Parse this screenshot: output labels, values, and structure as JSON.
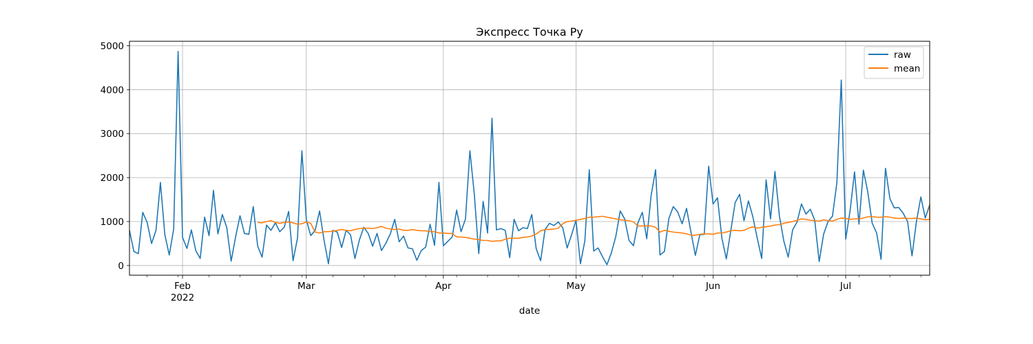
{
  "chart_data": {
    "type": "line",
    "title": "Экспресс Точка Ру",
    "xlabel": "date",
    "ylabel": "",
    "x_start": "2022-01-20",
    "x_end": "2022-07-20",
    "ylim": [
      -220,
      5100
    ],
    "yticks": [
      0,
      1000,
      2000,
      3000,
      4000,
      5000
    ],
    "xticks": [
      {
        "date": "2022-02-01",
        "label": "Feb",
        "sublabel": "2022"
      },
      {
        "date": "2022-03-01",
        "label": "Mar",
        "sublabel": ""
      },
      {
        "date": "2022-04-01",
        "label": "Apr",
        "sublabel": ""
      },
      {
        "date": "2022-05-01",
        "label": "May",
        "sublabel": ""
      },
      {
        "date": "2022-06-01",
        "label": "Jun",
        "sublabel": ""
      },
      {
        "date": "2022-07-01",
        "label": "Jul",
        "sublabel": ""
      }
    ],
    "grid": true,
    "legend_position": "top-right",
    "series": [
      {
        "name": "raw",
        "color": "#1f77b4",
        "start_date": "2022-01-20",
        "values": [
          800,
          320,
          270,
          1210,
          980,
          500,
          800,
          1890,
          700,
          240,
          830,
          4870,
          640,
          390,
          810,
          340,
          160,
          1100,
          680,
          1710,
          720,
          1160,
          870,
          100,
          650,
          1130,
          730,
          710,
          1340,
          440,
          190,
          920,
          800,
          970,
          770,
          870,
          1230,
          110,
          620,
          2610,
          1040,
          680,
          800,
          1240,
          580,
          40,
          800,
          760,
          410,
          800,
          700,
          160,
          580,
          870,
          730,
          440,
          730,
          340,
          510,
          720,
          1050,
          540,
          670,
          400,
          380,
          120,
          340,
          420,
          940,
          460,
          1890,
          450,
          550,
          650,
          1260,
          770,
          1060,
          2610,
          1620,
          270,
          1460,
          740,
          3350,
          810,
          840,
          800,
          180,
          1050,
          790,
          860,
          840,
          1160,
          380,
          110,
          820,
          960,
          910,
          990,
          860,
          400,
          700,
          1030,
          40,
          560,
          2180,
          330,
          400,
          200,
          20,
          290,
          660,
          1240,
          1060,
          570,
          450,
          970,
          1210,
          610,
          1600,
          2180,
          240,
          320,
          1070,
          1340,
          1220,
          950,
          1300,
          760,
          230,
          700,
          710,
          2260,
          1400,
          1540,
          620,
          150,
          790,
          1430,
          1620,
          1020,
          1470,
          1110,
          620,
          160,
          1950,
          1060,
          2140,
          1130,
          560,
          190,
          810,
          990,
          1400,
          1170,
          1280,
          1030,
          90,
          710,
          1000,
          1120,
          1880,
          4220,
          600,
          1250,
          2130,
          940,
          2170,
          1670,
          960,
          740,
          140,
          2210,
          1520,
          1310,
          1320,
          1190,
          1000,
          220,
          1000,
          1560,
          1080,
          1380
        ]
      },
      {
        "name": "mean",
        "color": "#ff7f0e",
        "start_date": "2022-02-18",
        "values": [
          980,
          970,
          1000,
          1020,
          980,
          960,
          980,
          990,
          970,
          940,
          950,
          990,
          960,
          760,
          740,
          770,
          770,
          780,
          800,
          820,
          800,
          790,
          820,
          840,
          850,
          850,
          840,
          860,
          890,
          850,
          830,
          820,
          830,
          800,
          800,
          820,
          800,
          790,
          790,
          770,
          770,
          740,
          740,
          730,
          730,
          650,
          650,
          640,
          620,
          600,
          590,
          570,
          570,
          550,
          560,
          560,
          600,
          620,
          620,
          620,
          640,
          650,
          670,
          720,
          790,
          820,
          820,
          830,
          850,
          950,
          1000,
          1010,
          1030,
          1050,
          1070,
          1100,
          1100,
          1110,
          1120,
          1100,
          1080,
          1060,
          1040,
          1030,
          1020,
          990,
          900,
          900,
          900,
          900,
          870,
          760,
          800,
          780,
          760,
          750,
          740,
          720,
          690,
          690,
          710,
          720,
          720,
          710,
          740,
          740,
          760,
          790,
          800,
          790,
          800,
          850,
          880,
          850,
          870,
          880,
          900,
          920,
          930,
          960,
          980,
          1000,
          1030,
          1060,
          1050,
          1030,
          1020,
          1010,
          1040,
          1020,
          1010,
          1050,
          1080,
          1070,
          1050,
          1060,
          1060,
          1080,
          1110,
          1110,
          1100,
          1100,
          1110,
          1100,
          1080,
          1070,
          1080,
          1070,
          1070,
          1080,
          1060,
          1040,
          1050,
          1120,
          1200,
          1190,
          1260,
          1270,
          1240,
          1280,
          1270,
          1240,
          1260,
          1250,
          1270,
          1330,
          1340,
          1340,
          1340,
          1340,
          1350,
          1360,
          1380,
          1400,
          1400,
          1380
        ]
      }
    ]
  }
}
